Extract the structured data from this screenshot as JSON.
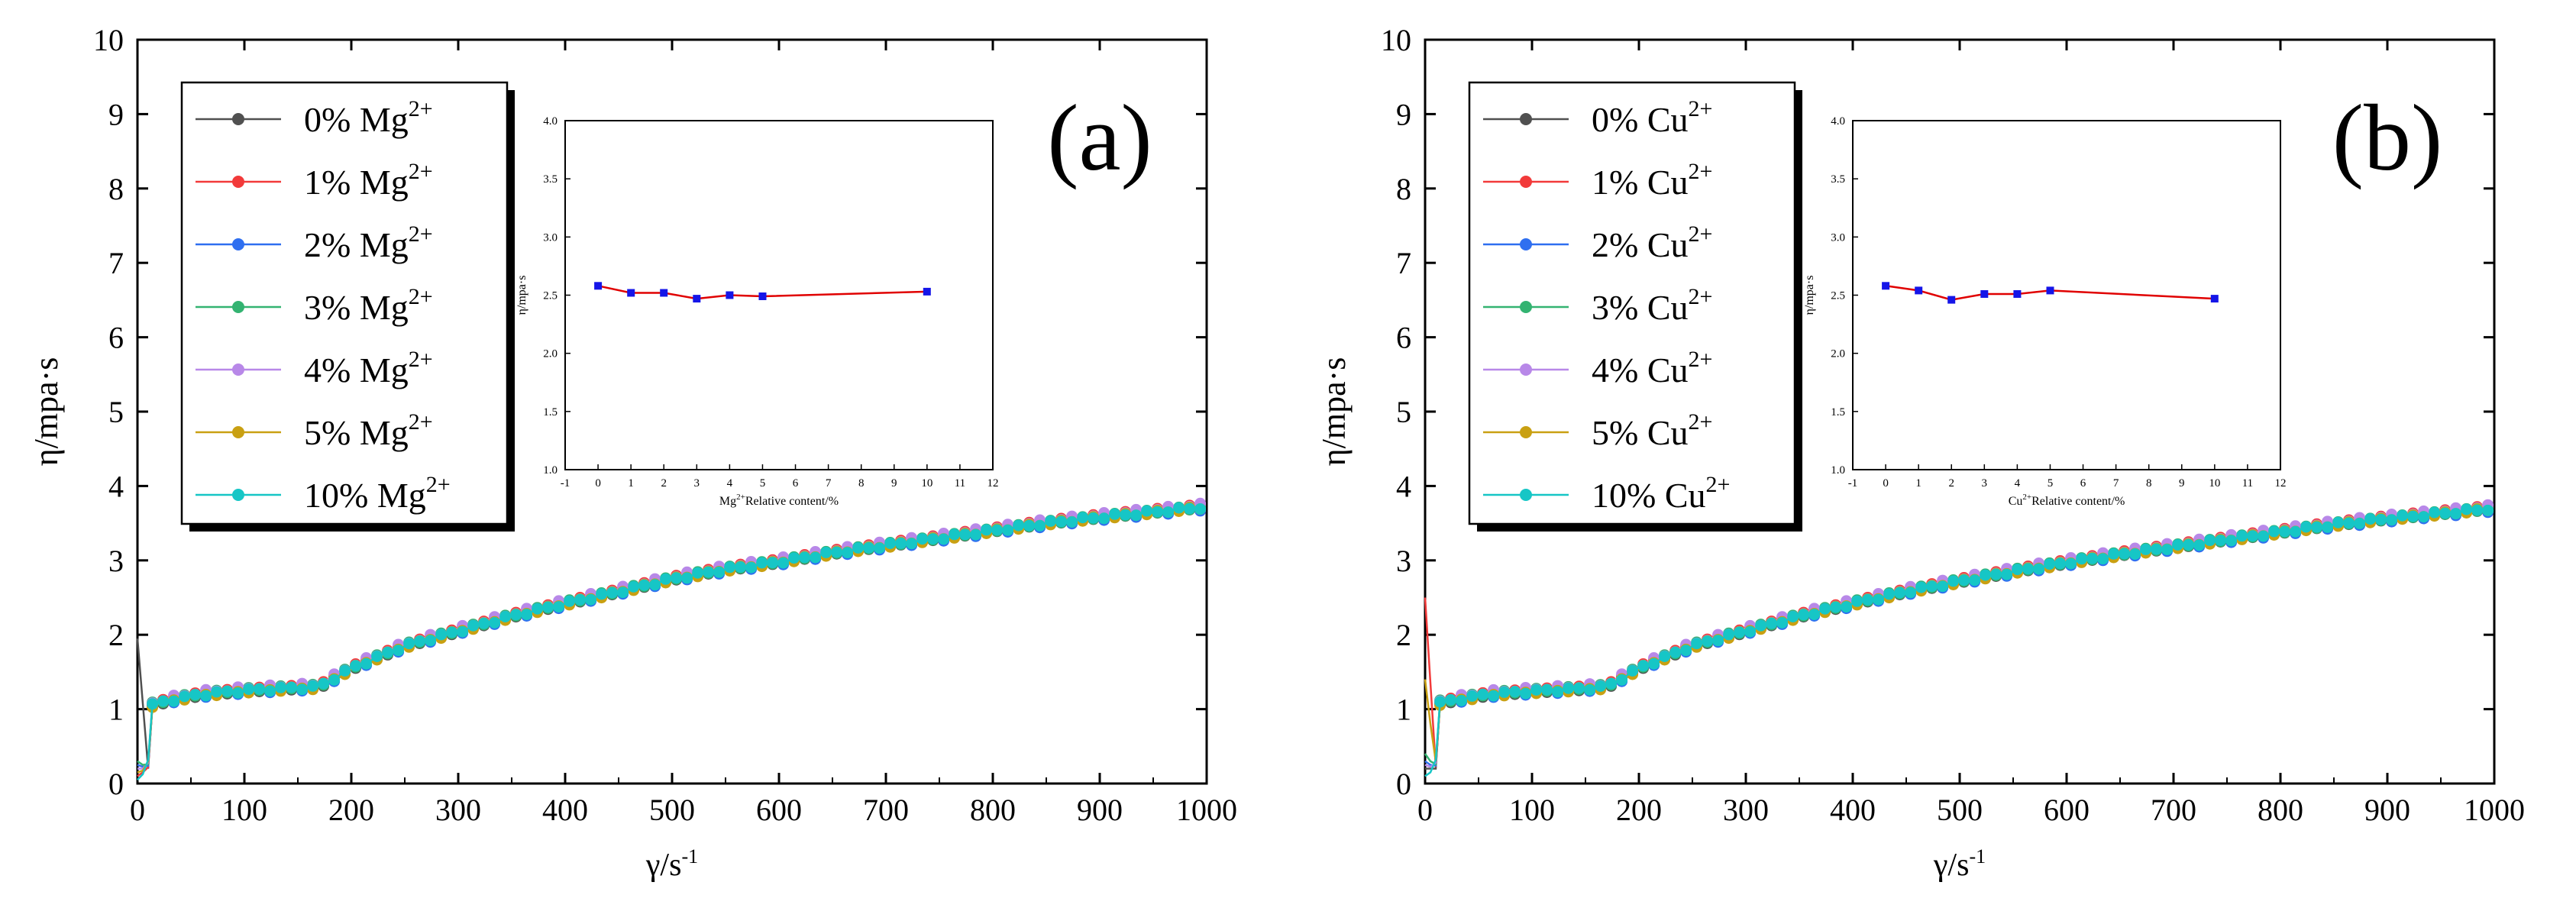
{
  "colors": {
    "0%": "#505050",
    "1%": "#f23a3a",
    "2%": "#2f6ff0",
    "3%": "#33b371",
    "4%": "#b888e8",
    "5%": "#c9a012",
    "10%": "#16c6c6",
    "inset_line": "#e00000",
    "inset_marker": "#1515e8"
  },
  "chart_data": [
    {
      "type": "line",
      "panel_label": "(a)",
      "xlabel_base": "γ/s",
      "xlabel_sup": "-1",
      "ylabel": "η/mpa·s",
      "xlim": [
        0,
        1000
      ],
      "ylim": [
        0,
        10
      ],
      "xticks": [
        0,
        100,
        200,
        300,
        400,
        500,
        600,
        700,
        800,
        900,
        1000
      ],
      "yticks": [
        0,
        1,
        2,
        3,
        4,
        5,
        6,
        7,
        8,
        9,
        10
      ],
      "legend_position": "top-left",
      "series": [
        {
          "name": "0% Mg",
          "label": "0% Mg",
          "sup": "2+",
          "color_key": "0%",
          "offset": 0.0,
          "start": 1.95
        },
        {
          "name": "1% Mg",
          "label": "1% Mg",
          "sup": "2+",
          "color_key": "1%",
          "offset": 0.02,
          "start": 0.1
        },
        {
          "name": "2% Mg",
          "label": "2% Mg",
          "sup": "2+",
          "color_key": "2%",
          "offset": -0.02,
          "start": 0.25
        },
        {
          "name": "3% Mg",
          "label": "3% Mg",
          "sup": "2+",
          "color_key": "3%",
          "offset": 0.01,
          "start": 0.3
        },
        {
          "name": "4% Mg",
          "label": "4% Mg",
          "sup": "2+",
          "color_key": "4%",
          "offset": 0.03,
          "start": 0.2
        },
        {
          "name": "5% Mg",
          "label": "5% Mg",
          "sup": "2+",
          "color_key": "5%",
          "offset": -0.01,
          "start": 0.15
        },
        {
          "name": "10% Mg",
          "label": "10% Mg",
          "sup": "2+",
          "color_key": "10%",
          "offset": 0.0,
          "start": 0.05
        }
      ],
      "base_curve": {
        "x": [
          12,
          30,
          60,
          100,
          140,
          170,
          200,
          250,
          300,
          350,
          400,
          450,
          500,
          550,
          600,
          650,
          700,
          750,
          800,
          850,
          900,
          950,
          1000
        ],
        "y": [
          1.05,
          1.12,
          1.2,
          1.25,
          1.28,
          1.3,
          1.55,
          1.85,
          2.05,
          2.25,
          2.42,
          2.58,
          2.75,
          2.88,
          2.98,
          3.1,
          3.2,
          3.3,
          3.4,
          3.5,
          3.58,
          3.65,
          3.72
        ]
      },
      "inset": {
        "type": "line",
        "x_label_base": "Mg",
        "x_label_sup": "2+",
        "x_label_rest": "Relative content/%",
        "ylabel": "η/mpa·s",
        "xlim": [
          -1,
          12
        ],
        "ylim": [
          1.0,
          4.0
        ],
        "xticks": [
          -1,
          0,
          1,
          2,
          3,
          4,
          5,
          6,
          7,
          8,
          9,
          10,
          11,
          12
        ],
        "yticks": [
          "1.0",
          "1.5",
          "2.0",
          "2.5",
          "3.0",
          "3.5",
          "4.0"
        ],
        "x": [
          0,
          1,
          2,
          3,
          4,
          5,
          10
        ],
        "y": [
          2.58,
          2.52,
          2.52,
          2.47,
          2.5,
          2.49,
          2.53
        ]
      }
    },
    {
      "type": "line",
      "panel_label": "(b)",
      "xlabel_base": "γ/s",
      "xlabel_sup": "-1",
      "ylabel": "η/mpa·s",
      "xlim": [
        0,
        1000
      ],
      "ylim": [
        0,
        10
      ],
      "xticks": [
        0,
        100,
        200,
        300,
        400,
        500,
        600,
        700,
        800,
        900,
        1000
      ],
      "yticks": [
        0,
        1,
        2,
        3,
        4,
        5,
        6,
        7,
        8,
        9,
        10
      ],
      "legend_position": "top-left",
      "series": [
        {
          "name": "0% Cu",
          "label": "0% Cu",
          "sup": "2+",
          "color_key": "0%",
          "offset": 0.0,
          "start": 0.2
        },
        {
          "name": "1% Cu",
          "label": "1% Cu",
          "sup": "2+",
          "color_key": "1%",
          "offset": 0.02,
          "start": 2.5
        },
        {
          "name": "2% Cu",
          "label": "2% Cu",
          "sup": "2+",
          "color_key": "2%",
          "offset": -0.02,
          "start": 0.3
        },
        {
          "name": "3% Cu",
          "label": "3% Cu",
          "sup": "2+",
          "color_key": "3%",
          "offset": 0.01,
          "start": 0.4
        },
        {
          "name": "4% Cu",
          "label": "4% Cu",
          "sup": "2+",
          "color_key": "4%",
          "offset": 0.03,
          "start": 0.25
        },
        {
          "name": "5% Cu",
          "label": "5% Cu",
          "sup": "2+",
          "color_key": "5%",
          "offset": -0.01,
          "start": 1.4
        },
        {
          "name": "10% Cu",
          "label": "10% Cu",
          "sup": "2+",
          "color_key": "10%",
          "offset": 0.0,
          "start": 0.1
        }
      ],
      "base_curve": {
        "x": [
          12,
          30,
          60,
          100,
          140,
          170,
          200,
          250,
          300,
          350,
          400,
          450,
          500,
          550,
          600,
          650,
          700,
          750,
          800,
          850,
          900,
          950,
          1000
        ],
        "y": [
          1.08,
          1.13,
          1.2,
          1.24,
          1.27,
          1.3,
          1.55,
          1.85,
          2.05,
          2.25,
          2.42,
          2.58,
          2.72,
          2.85,
          2.97,
          3.08,
          3.18,
          3.28,
          3.38,
          3.48,
          3.56,
          3.63,
          3.7
        ]
      },
      "inset": {
        "type": "line",
        "x_label_base": "Cu",
        "x_label_sup": "2+",
        "x_label_rest": "Relative content/%",
        "ylabel": "η/mpa·s",
        "xlim": [
          -1,
          12
        ],
        "ylim": [
          1.0,
          4.0
        ],
        "xticks": [
          -1,
          0,
          1,
          2,
          3,
          4,
          5,
          6,
          7,
          8,
          9,
          10,
          11,
          12
        ],
        "yticks": [
          "1.0",
          "1.5",
          "2.0",
          "2.5",
          "3.0",
          "3.5",
          "4.0"
        ],
        "x": [
          0,
          1,
          2,
          3,
          4,
          5,
          10
        ],
        "y": [
          2.58,
          2.54,
          2.46,
          2.51,
          2.51,
          2.54,
          2.47
        ]
      }
    }
  ]
}
